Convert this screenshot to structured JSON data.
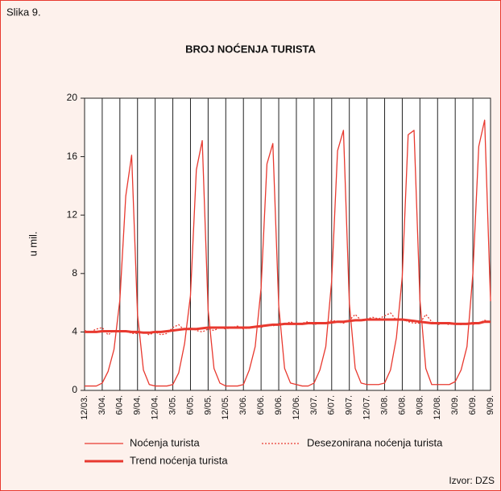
{
  "chart_data": {
    "type": "line",
    "figure_label": "Slika 9.",
    "title": "BROJ NOĆENJA TURISTA",
    "y_label": "u mil.",
    "source": "Izvor: DZS",
    "categories": [
      "12/03.",
      null,
      null,
      "3/04.",
      null,
      null,
      "6/04.",
      null,
      null,
      "9/04.",
      null,
      null,
      "12/04.",
      null,
      null,
      "3/05.",
      null,
      null,
      "6/05.",
      null,
      null,
      "9/05.",
      null,
      null,
      "12/05.",
      null,
      null,
      "3/06.",
      null,
      null,
      "6/06.",
      null,
      null,
      "9/06.",
      null,
      null,
      "12/06.",
      null,
      null,
      "3/07.",
      null,
      null,
      "6/07.",
      null,
      null,
      "9/07.",
      null,
      null,
      "12/07.",
      null,
      null,
      "3/08.",
      null,
      null,
      "6/08.",
      null,
      null,
      "9/08.",
      null,
      null,
      "12/08.",
      null,
      null,
      "3/09.",
      null,
      null,
      "6/09.",
      null,
      null,
      "9/09."
    ],
    "series": [
      {
        "name": "Noćenja turista",
        "color": "#e8392f",
        "width": 1.3,
        "dash": "none",
        "values": [
          0.3,
          0.3,
          0.3,
          0.5,
          1.3,
          2.8,
          6.2,
          13.3,
          16.1,
          5.2,
          1.4,
          0.4,
          0.3,
          0.3,
          0.3,
          0.4,
          1.2,
          3.2,
          6.5,
          15.1,
          17.1,
          5.5,
          1.5,
          0.5,
          0.3,
          0.3,
          0.3,
          0.4,
          1.4,
          3.0,
          7.0,
          15.5,
          16.9,
          5.8,
          1.5,
          0.5,
          0.4,
          0.3,
          0.3,
          0.5,
          1.4,
          3.0,
          7.5,
          16.4,
          17.8,
          6.0,
          1.5,
          0.5,
          0.4,
          0.4,
          0.4,
          0.5,
          1.4,
          3.6,
          7.8,
          17.5,
          17.8,
          6.2,
          1.5,
          0.4,
          0.4,
          0.4,
          0.4,
          0.6,
          1.4,
          3.0,
          8.0,
          16.7,
          18.5,
          6.1
        ]
      },
      {
        "name": "Desezonirana noćenja turista",
        "color": "#e8392f",
        "width": 1.3,
        "dash": "2,2",
        "values": [
          4.1,
          4.0,
          4.2,
          4.3,
          3.8,
          4.1,
          4.0,
          4.1,
          3.9,
          3.9,
          4.0,
          3.8,
          4.0,
          3.8,
          3.9,
          4.3,
          4.5,
          4.1,
          4.3,
          4.1,
          4.0,
          4.2,
          4.1,
          4.3,
          4.2,
          4.3,
          4.4,
          4.2,
          4.3,
          4.4,
          4.3,
          4.5,
          4.4,
          4.6,
          4.5,
          4.7,
          4.5,
          4.6,
          4.7,
          4.5,
          4.6,
          4.6,
          4.8,
          4.7,
          4.6,
          4.8,
          5.2,
          4.8,
          4.9,
          5.0,
          4.9,
          5.1,
          5.3,
          4.8,
          4.9,
          4.7,
          4.6,
          4.6,
          5.2,
          4.7,
          4.5,
          4.6,
          4.5,
          4.6,
          4.5,
          4.6,
          4.5,
          4.6,
          4.8,
          4.7
        ]
      },
      {
        "name": "Trend noćenja turista",
        "color": "#e8392f",
        "width": 3,
        "dash": "none",
        "values": [
          4.0,
          4.0,
          4.0,
          4.05,
          4.05,
          4.05,
          4.05,
          4.05,
          4.0,
          4.0,
          3.95,
          3.95,
          4.0,
          4.0,
          4.05,
          4.1,
          4.15,
          4.2,
          4.2,
          4.2,
          4.25,
          4.3,
          4.3,
          4.3,
          4.3,
          4.3,
          4.3,
          4.3,
          4.3,
          4.35,
          4.4,
          4.45,
          4.5,
          4.5,
          4.55,
          4.55,
          4.55,
          4.55,
          4.6,
          4.6,
          4.6,
          4.6,
          4.65,
          4.7,
          4.7,
          4.75,
          4.8,
          4.8,
          4.85,
          4.85,
          4.85,
          4.85,
          4.85,
          4.85,
          4.85,
          4.8,
          4.75,
          4.7,
          4.65,
          4.6,
          4.6,
          4.6,
          4.6,
          4.55,
          4.55,
          4.55,
          4.6,
          4.6,
          4.7,
          4.7
        ]
      }
    ],
    "ylim": [
      0,
      20
    ],
    "yticks": [
      0,
      4,
      8,
      12,
      16,
      20
    ],
    "vertical_grid": true
  }
}
